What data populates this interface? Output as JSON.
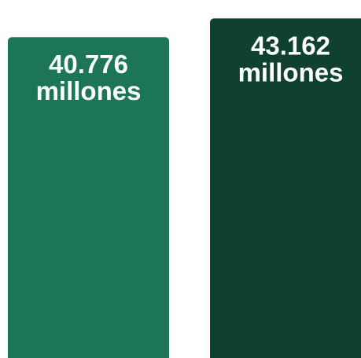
{
  "chart_data": {
    "type": "bar",
    "title": "",
    "xlabel": "",
    "ylabel": "",
    "categories": [
      "",
      ""
    ],
    "values": [
      40.776,
      43.162
    ],
    "unit": "millones",
    "data_labels": [
      [
        "40.776",
        "millones"
      ],
      [
        "43.162",
        "millones"
      ]
    ],
    "colors": [
      "#1b7556",
      "#104032"
    ],
    "ylim": [
      0,
      45.5
    ],
    "grid": false,
    "legend": "none"
  }
}
